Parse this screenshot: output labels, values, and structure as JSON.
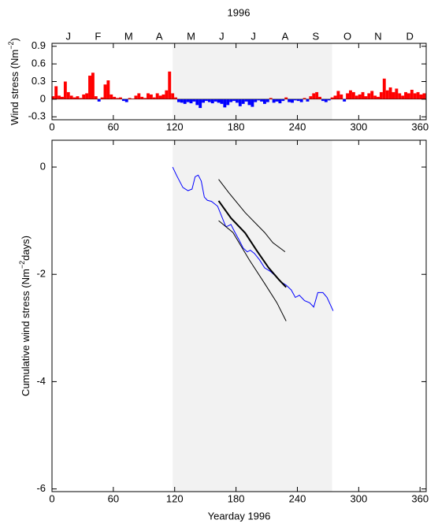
{
  "chart_data": [
    {
      "type": "bar",
      "title": "1996",
      "ylabel": [
        "Wind stress (Nm",
        "−2",
        ")"
      ],
      "x": [
        1,
        4,
        7,
        10,
        13,
        16,
        19,
        22,
        25,
        28,
        31,
        34,
        37,
        40,
        43,
        46,
        49,
        52,
        55,
        58,
        61,
        64,
        67,
        70,
        73,
        76,
        79,
        82,
        85,
        88,
        91,
        94,
        97,
        100,
        103,
        106,
        109,
        112,
        115,
        118,
        121,
        124,
        127,
        130,
        133,
        136,
        139,
        142,
        145,
        148,
        151,
        154,
        157,
        160,
        163,
        166,
        169,
        172,
        175,
        178,
        181,
        184,
        187,
        190,
        193,
        196,
        199,
        202,
        205,
        208,
        211,
        214,
        217,
        220,
        223,
        226,
        229,
        232,
        235,
        238,
        241,
        244,
        247,
        250,
        253,
        256,
        259,
        262,
        265,
        268,
        271,
        274,
        277,
        280,
        283,
        286,
        289,
        292,
        295,
        298,
        301,
        304,
        307,
        310,
        313,
        316,
        319,
        322,
        325,
        328,
        331,
        334,
        337,
        340,
        343,
        346,
        349,
        352,
        355,
        358,
        361,
        364
      ],
      "values": [
        0.05,
        0.22,
        0.06,
        0.04,
        0.3,
        0.12,
        0.06,
        0.03,
        0.05,
        0.02,
        0.08,
        0.1,
        0.4,
        0.45,
        0.05,
        -0.04,
        0.03,
        0.25,
        0.32,
        0.08,
        0.04,
        0.02,
        0.03,
        -0.03,
        -0.05,
        0.02,
        0.01,
        0.06,
        0.1,
        0.04,
        0.02,
        0.1,
        0.08,
        0.03,
        0.1,
        0.06,
        0.08,
        0.15,
        0.47,
        0.1,
        0.03,
        -0.05,
        -0.06,
        -0.08,
        -0.05,
        -0.07,
        -0.04,
        -0.1,
        -0.15,
        -0.06,
        -0.03,
        -0.05,
        -0.07,
        -0.04,
        -0.06,
        -0.08,
        -0.14,
        -0.1,
        -0.05,
        -0.03,
        -0.06,
        -0.12,
        -0.08,
        -0.04,
        -0.1,
        -0.13,
        -0.05,
        -0.02,
        -0.04,
        -0.08,
        -0.05,
        0.02,
        -0.06,
        -0.04,
        -0.07,
        -0.03,
        0.03,
        -0.05,
        -0.06,
        -0.02,
        -0.03,
        -0.05,
        0.02,
        -0.04,
        0.05,
        0.1,
        0.12,
        0.04,
        -0.03,
        -0.05,
        -0.02,
        0.03,
        0.06,
        0.14,
        0.08,
        -0.04,
        0.1,
        0.15,
        0.12,
        0.06,
        0.08,
        0.12,
        0.05,
        0.1,
        0.14,
        0.06,
        0.04,
        0.12,
        0.35,
        0.15,
        0.2,
        0.12,
        0.18,
        0.1,
        0.06,
        0.12,
        0.1,
        0.16,
        0.1,
        0.12,
        0.08,
        0.1
      ],
      "colors": {
        "positive": "#ff0000",
        "negative": "#0000ff"
      },
      "shade": [
        118,
        274
      ],
      "shade_color": "#f2f2f2",
      "xlim": [
        0,
        366
      ],
      "xticks": [
        0,
        60,
        120,
        180,
        240,
        300,
        360
      ],
      "x2ticks": [
        {
          "value": 16,
          "label": "J"
        },
        {
          "value": 45,
          "label": "F"
        },
        {
          "value": 75,
          "label": "M"
        },
        {
          "value": 105,
          "label": "A"
        },
        {
          "value": 136,
          "label": "M"
        },
        {
          "value": 166,
          "label": "J"
        },
        {
          "value": 197,
          "label": "J"
        },
        {
          "value": 228,
          "label": "A"
        },
        {
          "value": 258,
          "label": "S"
        },
        {
          "value": 289,
          "label": "O"
        },
        {
          "value": 319,
          "label": "N"
        },
        {
          "value": 350,
          "label": "D"
        }
      ],
      "ylim": [
        -0.35,
        0.95
      ],
      "yticks": [
        0.9,
        0.6,
        0.3,
        0,
        -0.3
      ]
    },
    {
      "type": "line",
      "xlabel": "Yearday 1996",
      "ylabel": [
        "Cumulative wind stress (Nm",
        "−2",
        "days)"
      ],
      "shade": [
        118,
        274
      ],
      "shade_color": "#f2f2f2",
      "xlim": [
        0,
        366
      ],
      "xticks": [
        0,
        60,
        120,
        180,
        240,
        300,
        360
      ],
      "ylim": [
        -6.05,
        0.5
      ],
      "yticks": [
        0,
        -2,
        -4,
        -6
      ],
      "series": [
        {
          "color": "#0000ff",
          "line_width": 1,
          "x": [
            118,
            122,
            128,
            133,
            137,
            140,
            143,
            146,
            149,
            152,
            156,
            162,
            166,
            170,
            172,
            175,
            179,
            183,
            187,
            191,
            194,
            198,
            203,
            208,
            214,
            218,
            224,
            229,
            234,
            238,
            242,
            247,
            252,
            256,
            260,
            265,
            269,
            275
          ],
          "values": [
            0,
            -0.16,
            -0.38,
            -0.44,
            -0.41,
            -0.18,
            -0.15,
            -0.26,
            -0.56,
            -0.62,
            -0.64,
            -0.73,
            -0.92,
            -1.11,
            -1.1,
            -1.07,
            -1.22,
            -1.36,
            -1.51,
            -1.58,
            -1.55,
            -1.61,
            -1.73,
            -1.88,
            -1.95,
            -2.02,
            -2.14,
            -2.2,
            -2.29,
            -2.43,
            -2.39,
            -2.49,
            -2.53,
            -2.61,
            -2.34,
            -2.34,
            -2.43,
            -2.68
          ]
        },
        {
          "color": "#000000",
          "line_width": 2,
          "x": [
            163,
            175,
            189,
            200,
            212,
            222,
            229
          ],
          "values": [
            -0.63,
            -0.95,
            -1.23,
            -1.55,
            -1.88,
            -2.1,
            -2.24
          ]
        },
        {
          "color": "#000000",
          "line_width": 1,
          "x": [
            163,
            173,
            189,
            208,
            216,
            228
          ],
          "values": [
            -0.23,
            -0.48,
            -0.85,
            -1.22,
            -1.41,
            -1.58
          ]
        },
        {
          "color": "#000000",
          "line_width": 1,
          "x": [
            163,
            177,
            193,
            208,
            220,
            229
          ],
          "values": [
            -1.0,
            -1.22,
            -1.73,
            -2.17,
            -2.53,
            -2.87
          ]
        }
      ]
    }
  ]
}
